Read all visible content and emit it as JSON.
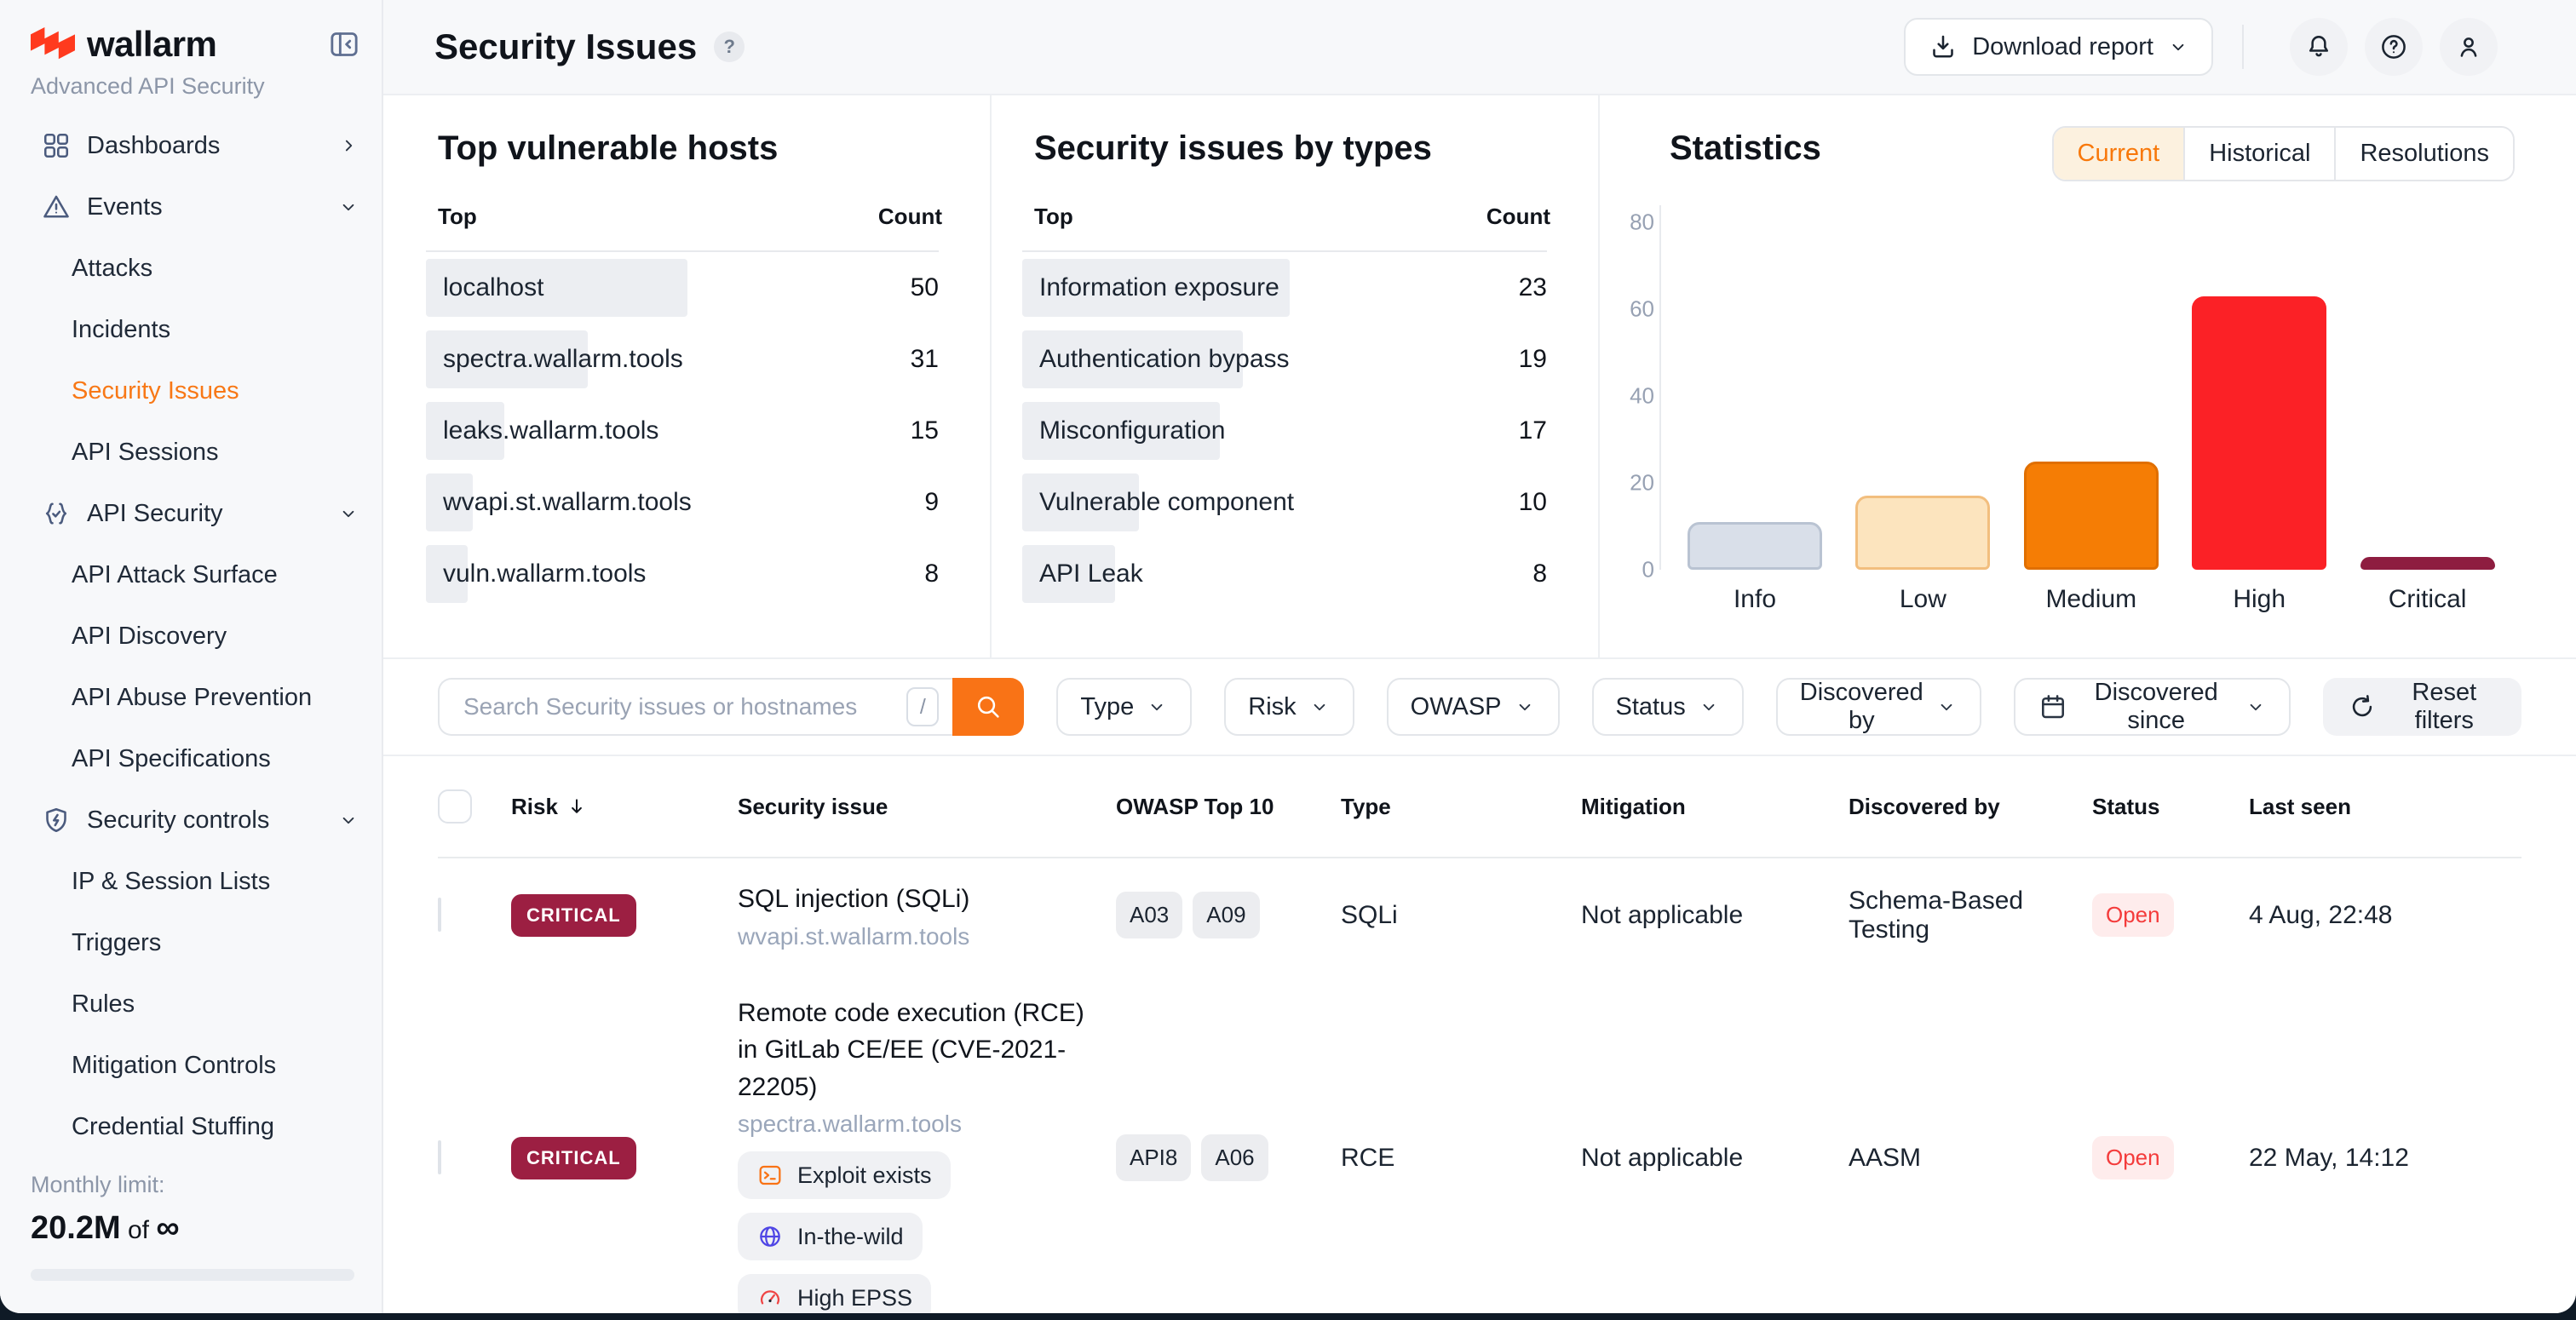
{
  "brand": {
    "name": "wallarm",
    "subtitle": "Advanced API Security"
  },
  "colors": {
    "accent_orange": "#F97316",
    "critical_badge": "#9C1F42",
    "open_status": "#F43B3B",
    "bar_highlight": "#ECEEF2"
  },
  "sidebar": {
    "items": [
      {
        "label": "Dashboards",
        "icon": "grid",
        "chevron": "right",
        "type": "section",
        "active": false
      },
      {
        "label": "Events",
        "icon": "warning",
        "chevron": "down",
        "type": "section",
        "active": false
      },
      {
        "label": "Attacks",
        "type": "child",
        "active": false
      },
      {
        "label": "Incidents",
        "type": "child",
        "active": false
      },
      {
        "label": "Security Issues",
        "type": "child",
        "active": true
      },
      {
        "label": "API Sessions",
        "type": "child",
        "active": false
      },
      {
        "label": "API Security",
        "icon": "braces",
        "chevron": "down",
        "type": "section",
        "active": false
      },
      {
        "label": "API Attack Surface",
        "type": "child",
        "active": false
      },
      {
        "label": "API Discovery",
        "type": "child",
        "active": false
      },
      {
        "label": "API Abuse Prevention",
        "type": "child",
        "active": false
      },
      {
        "label": "API Specifications",
        "type": "child",
        "active": false
      },
      {
        "label": "Security controls",
        "icon": "shield",
        "chevron": "down",
        "type": "section",
        "active": false
      },
      {
        "label": "IP & Session Lists",
        "type": "child",
        "active": false
      },
      {
        "label": "Triggers",
        "type": "child",
        "active": false
      },
      {
        "label": "Rules",
        "type": "child",
        "active": false
      },
      {
        "label": "Mitigation Controls",
        "type": "child",
        "active": false
      },
      {
        "label": "Credential Stuffing",
        "type": "child",
        "active": false
      }
    ],
    "monthly_limit": {
      "label": "Monthly limit:",
      "used": "20.2M",
      "of_word": "of",
      "total": "∞"
    }
  },
  "header": {
    "title": "Security Issues",
    "help_badge": "?",
    "download_label": "Download report"
  },
  "panels": {
    "hosts": {
      "title": "Top vulnerable hosts",
      "col_label": "Top",
      "col_count": "Count",
      "rows": [
        {
          "label": "localhost",
          "count": 50
        },
        {
          "label": "spectra.wallarm.tools",
          "count": 31
        },
        {
          "label": "leaks.wallarm.tools",
          "count": 15
        },
        {
          "label": "wvapi.st.wallarm.tools",
          "count": 9
        },
        {
          "label": "vuln.wallarm.tools",
          "count": 8
        }
      ]
    },
    "types": {
      "title": "Security issues by types",
      "col_label": "Top",
      "col_count": "Count",
      "rows": [
        {
          "label": "Information exposure",
          "count": 23
        },
        {
          "label": "Authentication bypass",
          "count": 19
        },
        {
          "label": "Misconfiguration",
          "count": 17
        },
        {
          "label": "Vulnerable component",
          "count": 10
        },
        {
          "label": "API Leak",
          "count": 8
        }
      ]
    },
    "statistics": {
      "title": "Statistics",
      "tabs": [
        "Current",
        "Historical",
        "Resolutions"
      ],
      "active_tab": "Current"
    }
  },
  "chart_data": {
    "type": "bar",
    "title": "Statistics — current security issues by risk level",
    "categories": [
      "Info",
      "Low",
      "Medium",
      "High",
      "Critical"
    ],
    "values": [
      11,
      17,
      25,
      63,
      3
    ],
    "ylim": [
      0,
      80
    ],
    "yticks": [
      0,
      20,
      40,
      60,
      80
    ],
    "grid": false,
    "legend": "none",
    "colors": [
      {
        "fill": "#D9DFE9",
        "border": "#B9C3D2"
      },
      {
        "fill": "#FCE4BE",
        "border": "#F2BE7E"
      },
      {
        "fill": "#F57D05",
        "border": "#E06F00"
      },
      {
        "fill": "#FB2126",
        "border": "#FB2126"
      },
      {
        "fill": "#8E1D40",
        "border": "#8E1D40"
      }
    ]
  },
  "filters": {
    "search_placeholder": "Search Security issues or hostnames",
    "shortcut_key": "/",
    "dropdowns": [
      "Type",
      "Risk",
      "OWASP",
      "Status",
      "Discovered by"
    ],
    "date_filter": "Discovered since",
    "reset_label": "Reset filters"
  },
  "table": {
    "columns": [
      "Risk",
      "Security issue",
      "OWASP Top 10",
      "Type",
      "Mitigation",
      "Discovered by",
      "Status",
      "Last seen"
    ],
    "sorted_column": "Risk",
    "rows": [
      {
        "risk": "CRITICAL",
        "title": "SQL injection (SQLi)",
        "host": "wvapi.st.wallarm.tools",
        "tags": [],
        "owasp": [
          "A03",
          "A09"
        ],
        "type": "SQLi",
        "mitigation": "Not applicable",
        "discovered_by": "Schema-Based Testing",
        "status": "Open",
        "last_seen": "4 Aug, 22:48"
      },
      {
        "risk": "CRITICAL",
        "title": "Remote code execution (RCE) in GitLab CE/EE (CVE-2021-22205)",
        "host": "spectra.wallarm.tools",
        "tags": [
          {
            "icon": "terminal",
            "label": "Exploit exists"
          },
          {
            "icon": "globe",
            "label": "In-the-wild"
          },
          {
            "icon": "gauge",
            "label": "High EPSS"
          }
        ],
        "owasp": [
          "API8",
          "A06"
        ],
        "type": "RCE",
        "mitigation": "Not applicable",
        "discovered_by": "AASM",
        "status": "Open",
        "last_seen": "22 May, 14:12"
      }
    ]
  }
}
